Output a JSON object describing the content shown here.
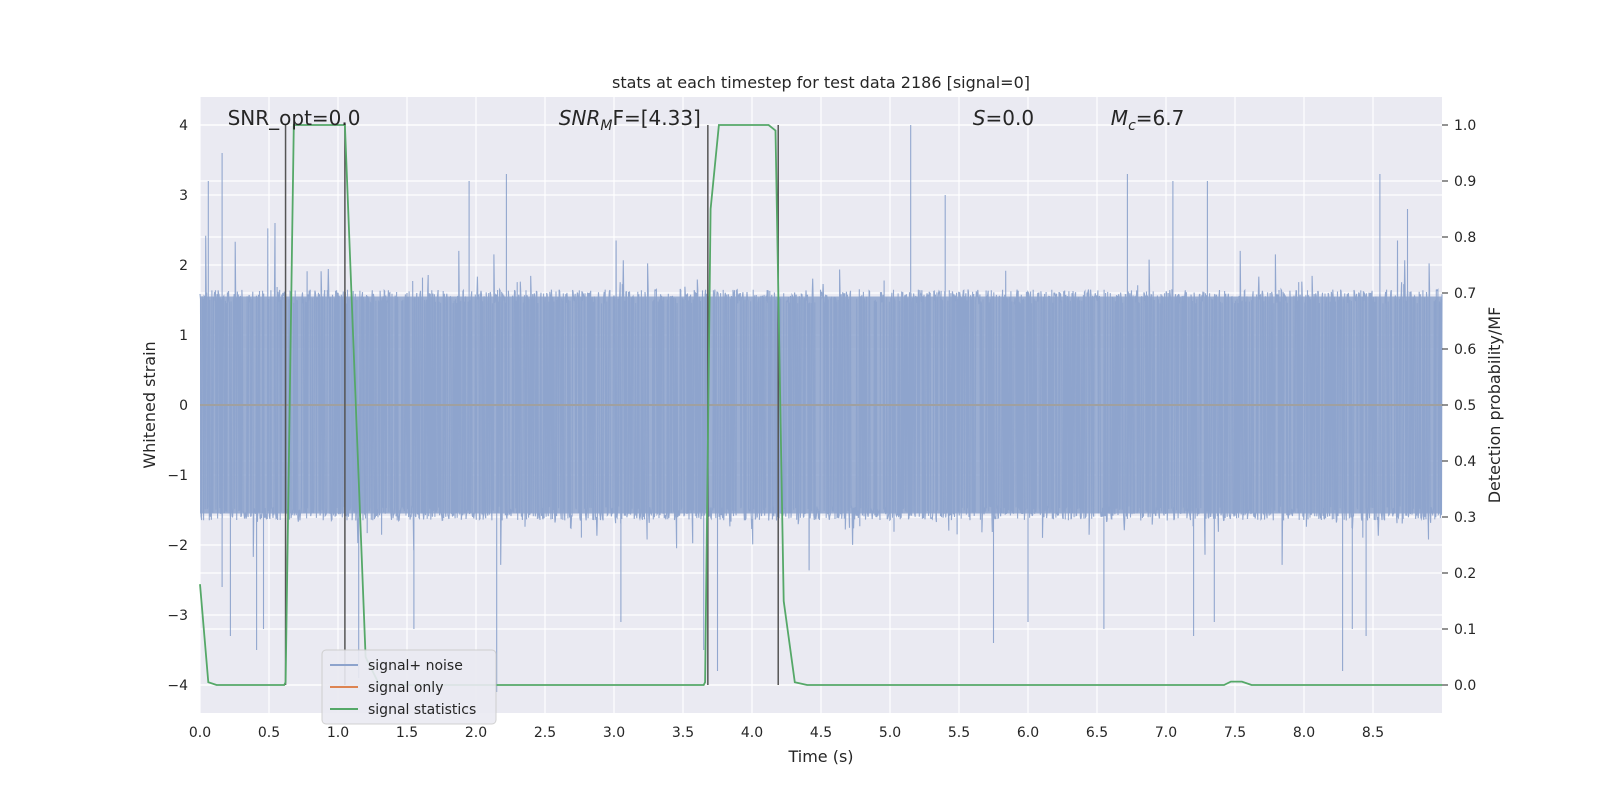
{
  "chart_data": {
    "type": "line",
    "title": "stats at each timestep for test data 2186 [signal=0]",
    "xlabel": "Time (s)",
    "ylabel": "Whitened strain",
    "y2label": "Detection probability/MF",
    "xlim": [
      0.0,
      9.0
    ],
    "ylim": [
      -4.4,
      4.4
    ],
    "y2lim": [
      -0.05,
      1.05
    ],
    "x_ticks": [
      "0.0",
      "0.5",
      "1.0",
      "1.5",
      "2.0",
      "2.5",
      "3.0",
      "3.5",
      "4.0",
      "4.5",
      "5.0",
      "5.5",
      "6.0",
      "6.5",
      "7.0",
      "7.5",
      "8.0",
      "8.5"
    ],
    "y_ticks": [
      "4",
      "3",
      "2",
      "1",
      "0",
      "−1",
      "−2",
      "−3",
      "−4"
    ],
    "y2_ticks": [
      "1.0",
      "0.9",
      "0.8",
      "0.7",
      "0.6",
      "0.5",
      "0.4",
      "0.3",
      "0.2",
      "0.1",
      "0.0"
    ],
    "grid": true,
    "legend_position": "lower-left",
    "annotations": [
      {
        "text": "SNR_opt=0.0",
        "x": 0.2,
        "y": 4.1
      },
      {
        "sym": "SNR",
        "sub": "M",
        "suffix": "F=[4.33]",
        "x": 2.6,
        "y": 4.1
      },
      {
        "sym": "S",
        "suffix": "=0.0",
        "x": 5.6,
        "y": 4.1
      },
      {
        "sym": "M",
        "sub": "c",
        "suffix": "=6.7",
        "x": 6.6,
        "y": 4.1
      }
    ],
    "series": [
      {
        "name": "signal+ noise",
        "color": "#8da3cc",
        "kind": "noise",
        "x_range": [
          0.0,
          9.0
        ],
        "typical_range": [
          -1.6,
          1.6
        ],
        "peaks": [
          {
            "x": 0.06,
            "y": 3.2
          },
          {
            "x": 0.16,
            "y": 2.6
          },
          {
            "x": 0.16,
            "y": -2.6
          },
          {
            "x": 0.16,
            "y": 3.6
          },
          {
            "x": 0.22,
            "y": -3.3
          },
          {
            "x": 0.41,
            "y": -3.5
          },
          {
            "x": 0.46,
            "y": -3.2
          },
          {
            "x": 1.15,
            "y": -3.9
          },
          {
            "x": 1.55,
            "y": -3.2
          },
          {
            "x": 1.95,
            "y": 3.2
          },
          {
            "x": 2.15,
            "y": -4.1
          },
          {
            "x": 2.22,
            "y": 3.3
          },
          {
            "x": 3.05,
            "y": -3.1
          },
          {
            "x": 3.65,
            "y": -3.5
          },
          {
            "x": 3.75,
            "y": -3.8
          },
          {
            "x": 5.15,
            "y": 4.0
          },
          {
            "x": 5.4,
            "y": 3.0
          },
          {
            "x": 5.75,
            "y": -3.4
          },
          {
            "x": 6.0,
            "y": -3.1
          },
          {
            "x": 6.55,
            "y": -3.2
          },
          {
            "x": 6.72,
            "y": 3.3
          },
          {
            "x": 7.05,
            "y": 3.2
          },
          {
            "x": 7.2,
            "y": -3.3
          },
          {
            "x": 7.3,
            "y": 3.2
          },
          {
            "x": 7.35,
            "y": -3.1
          },
          {
            "x": 8.28,
            "y": -3.8
          },
          {
            "x": 8.35,
            "y": -3.2
          },
          {
            "x": 8.45,
            "y": -3.3
          },
          {
            "x": 8.55,
            "y": 3.3
          },
          {
            "x": 8.75,
            "y": 2.8
          }
        ]
      },
      {
        "name": "signal only",
        "color": "#dd8452",
        "x": [
          0.0,
          9.0
        ],
        "y": [
          0.0,
          0.0
        ]
      },
      {
        "name": "signal statistics",
        "color": "#55a868",
        "axis": "right",
        "x": [
          0.0,
          0.06,
          0.12,
          0.61,
          0.62,
          0.68,
          0.69,
          1.02,
          1.05,
          1.2,
          1.3,
          3.65,
          3.66,
          3.7,
          3.76,
          4.12,
          4.17,
          4.23,
          4.31,
          4.4,
          7.42,
          7.47,
          7.55,
          7.62,
          9.0
        ],
        "y": [
          0.18,
          0.005,
          0.0,
          0.0,
          0.005,
          1.0,
          1.0,
          1.0,
          1.0,
          0.05,
          0.0,
          0.0,
          0.005,
          0.85,
          1.0,
          1.0,
          0.99,
          0.15,
          0.005,
          0.0,
          0.0,
          0.006,
          0.006,
          0.0,
          0.0
        ]
      }
    ],
    "vertical_markers": [
      0.62,
      1.05,
      3.68,
      4.19
    ]
  }
}
